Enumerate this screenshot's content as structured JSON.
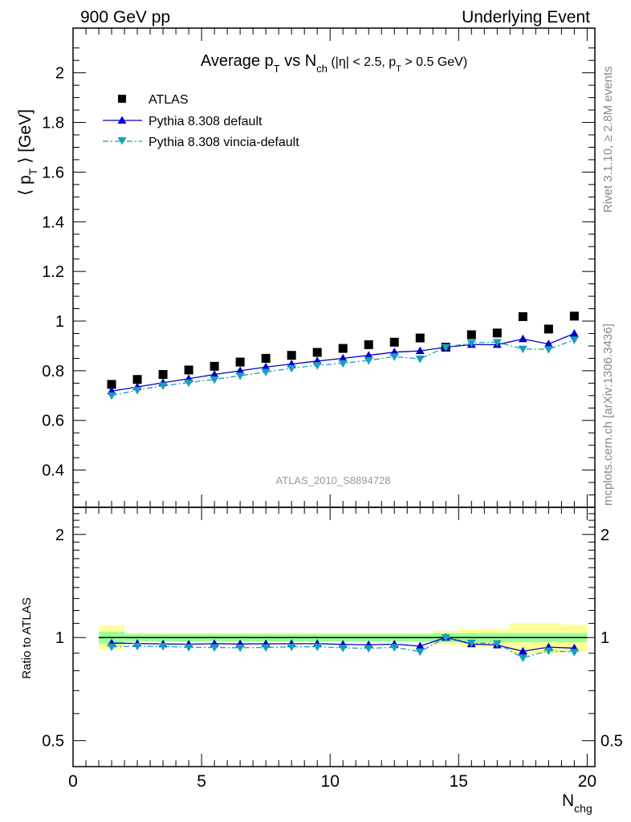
{
  "header": {
    "left": "900 GeV pp",
    "right": "Underlying Event"
  },
  "side_labels": {
    "rivet": "Rivet 3.1.10, ≥ 2.8M events",
    "mcplots": "mcplots.cern.ch [arXiv:1306.3436]"
  },
  "chart_data": {
    "type": "scatter",
    "title": "Average pT vs Nch (|η| < 2.5, pT > 0.5 GeV)",
    "analysis_tag": "ATLAS_2010_S8894728",
    "xlabel": "Nchg",
    "ylabel": "⟨ pT ⟩ [GeV]",
    "ratio_ylabel": "Ratio to ATLAS",
    "xlim": [
      0,
      20.3
    ],
    "ylim": [
      0.25,
      2.18
    ],
    "ratio_ylim": [
      0.42,
      2.4
    ],
    "ratio_scale": "log",
    "x_ticks": [
      "0",
      "5",
      "10",
      "15",
      "20"
    ],
    "y_ticks": [
      "0.4",
      "0.6",
      "0.8",
      "1",
      "1.2",
      "1.4",
      "1.6",
      "1.8",
      "2"
    ],
    "ratio_ticks": [
      "0.5",
      "1",
      "2"
    ],
    "legend_position": "top-left",
    "colors": {
      "data": "#000000",
      "default": "#0000cc",
      "vincia": "#1a9ebb",
      "band_inner": "#99ff99",
      "band_outer": "#ffff99"
    },
    "x": [
      1.5,
      2.5,
      3.5,
      4.5,
      5.5,
      6.5,
      7.5,
      8.5,
      9.5,
      10.5,
      11.5,
      12.5,
      13.5,
      14.5,
      15.5,
      16.5,
      17.5,
      18.5,
      19.5
    ],
    "series": [
      {
        "name": "ATLAS",
        "style": "data",
        "values": [
          0.745,
          0.765,
          0.785,
          0.803,
          0.818,
          0.835,
          0.85,
          0.862,
          0.874,
          0.89,
          0.905,
          0.915,
          0.932,
          0.895,
          0.945,
          0.952,
          1.018,
          0.968,
          1.02
        ]
      },
      {
        "name": "Pythia 8.308 default",
        "style": "default",
        "values": [
          0.718,
          0.735,
          0.752,
          0.768,
          0.785,
          0.8,
          0.815,
          0.827,
          0.839,
          0.85,
          0.862,
          0.875,
          0.88,
          0.895,
          0.905,
          0.905,
          0.928,
          0.908,
          0.95
        ]
      },
      {
        "name": "Pythia 8.308 vincia-default",
        "style": "vincia",
        "values": [
          0.7,
          0.722,
          0.74,
          0.752,
          0.765,
          0.78,
          0.795,
          0.81,
          0.822,
          0.83,
          0.842,
          0.857,
          0.848,
          0.895,
          0.912,
          0.915,
          0.888,
          0.886,
          0.925
        ]
      }
    ],
    "band_inner": [
      {
        "x": [
          1,
          2
        ],
        "lo": 0.96,
        "hi": 1.04
      },
      {
        "x": [
          2,
          14
        ],
        "lo": 0.975,
        "hi": 1.025
      },
      {
        "x": [
          14,
          20
        ],
        "lo": 0.97,
        "hi": 1.03
      }
    ],
    "band_outer": [
      {
        "x": [
          1,
          2
        ],
        "lo": 0.925,
        "hi": 1.085
      },
      {
        "x": [
          2,
          14
        ],
        "lo": 0.97,
        "hi": 1.03
      },
      {
        "x": [
          14,
          15
        ],
        "lo": 0.955,
        "hi": 1.045
      },
      {
        "x": [
          15,
          17
        ],
        "lo": 0.94,
        "hi": 1.06
      },
      {
        "x": [
          17,
          19
        ],
        "lo": 0.9,
        "hi": 1.1
      },
      {
        "x": [
          19,
          20
        ],
        "lo": 0.91,
        "hi": 1.09
      }
    ]
  }
}
